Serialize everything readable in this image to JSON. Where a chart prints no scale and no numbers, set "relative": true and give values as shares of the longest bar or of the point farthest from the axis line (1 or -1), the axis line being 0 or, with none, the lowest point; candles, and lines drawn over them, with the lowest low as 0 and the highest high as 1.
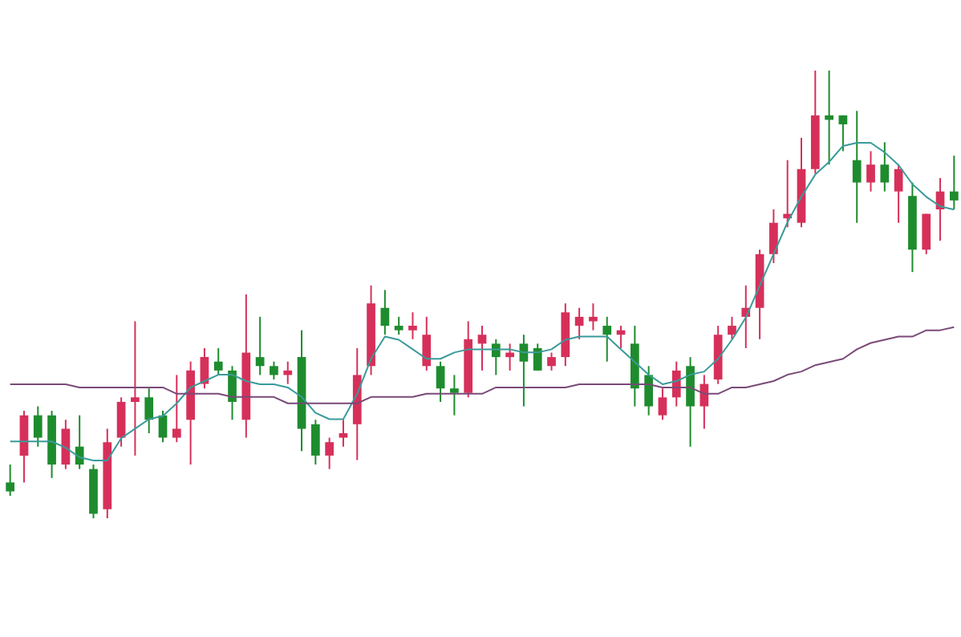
{
  "chart_data": [
    {
      "type": "candlestick",
      "relative": true,
      "categories": [
        null,
        null,
        null,
        null,
        null,
        null,
        null,
        null,
        null,
        null,
        null,
        null,
        null,
        null,
        null,
        null,
        null,
        null,
        null,
        null,
        null,
        null,
        null,
        null,
        null,
        null,
        null,
        null,
        null,
        null,
        null,
        null,
        null,
        null,
        null,
        null,
        null,
        null,
        null,
        null,
        null,
        null,
        null,
        null,
        null,
        null,
        null,
        null,
        null,
        null,
        null,
        null,
        null,
        null,
        null,
        null,
        null,
        null,
        null,
        null,
        null,
        null,
        null,
        null,
        null,
        null,
        null,
        null,
        null
      ],
      "ohlc": [
        [
          0.08,
          0.12,
          0.05,
          0.06
        ],
        [
          0.14,
          0.24,
          0.08,
          0.23
        ],
        [
          0.23,
          0.25,
          0.16,
          0.18
        ],
        [
          0.23,
          0.24,
          0.09,
          0.12
        ],
        [
          0.12,
          0.22,
          0.11,
          0.2
        ],
        [
          0.16,
          0.23,
          0.11,
          0.12
        ],
        [
          0.11,
          0.12,
          0.0,
          0.01
        ],
        [
          0.02,
          0.2,
          0,
          0.17
        ],
        [
          0.18,
          0.27,
          0.16,
          0.26
        ],
        [
          0.26,
          0.44,
          0.14,
          0.27
        ],
        [
          0.27,
          0.29,
          0.19,
          0.22
        ],
        [
          0.23,
          0.24,
          0.17,
          0.18
        ],
        [
          0.18,
          0.32,
          0.17,
          0.2
        ],
        [
          0.22,
          0.35,
          0.12,
          0.33
        ],
        [
          0.3,
          0.38,
          0.29,
          0.36
        ],
        [
          0.35,
          0.38,
          0.32,
          0.33
        ],
        [
          0.33,
          0.34,
          0.22,
          0.26
        ],
        [
          0.22,
          0.5,
          0.18,
          0.37
        ],
        [
          0.36,
          0.45,
          0.32,
          0.34
        ],
        [
          0.34,
          0.35,
          0.31,
          0.32
        ],
        [
          0.32,
          0.35,
          0.3,
          0.33
        ],
        [
          0.36,
          0.42,
          0.15,
          0.2
        ],
        [
          0.21,
          0.22,
          0.12,
          0.14
        ],
        [
          0.14,
          0.18,
          0.11,
          0.17
        ],
        [
          0.18,
          0.22,
          0.16,
          0.19
        ],
        [
          0.21,
          0.38,
          0.13,
          0.32
        ],
        [
          0.34,
          0.52,
          0.32,
          0.48
        ],
        [
          0.47,
          0.51,
          0.41,
          0.43
        ],
        [
          0.43,
          0.45,
          0.41,
          0.42
        ],
        [
          0.42,
          0.46,
          0.4,
          0.43
        ],
        [
          0.34,
          0.45,
          0.33,
          0.41
        ],
        [
          0.34,
          0.35,
          0.26,
          0.29
        ],
        [
          0.29,
          0.32,
          0.23,
          0.28
        ],
        [
          0.28,
          0.44,
          0.27,
          0.4
        ],
        [
          0.39,
          0.43,
          0.33,
          0.41
        ],
        [
          0.39,
          0.4,
          0.32,
          0.36
        ],
        [
          0.36,
          0.39,
          0.33,
          0.37
        ],
        [
          0.39,
          0.41,
          0.25,
          0.35
        ],
        [
          0.38,
          0.39,
          0.33,
          0.33
        ],
        [
          0.34,
          0.37,
          0.33,
          0.36
        ],
        [
          0.36,
          0.48,
          0.34,
          0.46
        ],
        [
          0.43,
          0.47,
          0.4,
          0.45
        ],
        [
          0.44,
          0.48,
          0.42,
          0.45
        ],
        [
          0.43,
          0.45,
          0.35,
          0.41
        ],
        [
          0.41,
          0.43,
          0.38,
          0.42
        ],
        [
          0.39,
          0.43,
          0.25,
          0.29
        ],
        [
          0.32,
          0.34,
          0.23,
          0.25
        ],
        [
          0.23,
          0.29,
          0.22,
          0.27
        ],
        [
          0.27,
          0.35,
          0.25,
          0.33
        ],
        [
          0.34,
          0.36,
          0.16,
          0.25
        ],
        [
          0.25,
          0.32,
          0.2,
          0.3
        ],
        [
          0.31,
          0.43,
          0.3,
          0.41
        ],
        [
          0.41,
          0.45,
          0.4,
          0.43
        ],
        [
          0.45,
          0.52,
          0.38,
          0.47
        ],
        [
          0.47,
          0.6,
          0.4,
          0.59
        ],
        [
          0.59,
          0.69,
          0.57,
          0.66
        ],
        [
          0.67,
          0.8,
          0.65,
          0.68
        ],
        [
          0.66,
          0.85,
          0.65,
          0.78
        ],
        [
          0.78,
          1,
          0.77,
          0.9
        ],
        [
          0.9,
          1,
          0.79,
          0.89
        ],
        [
          0.9,
          0.9,
          0.82,
          0.88
        ],
        [
          0.8,
          0.91,
          0.66,
          0.75
        ],
        [
          0.75,
          0.82,
          0.73,
          0.79
        ],
        [
          0.79,
          0.84,
          0.73,
          0.75
        ],
        [
          0.73,
          0.79,
          0.66,
          0.78
        ],
        [
          0.72,
          0.75,
          0.55,
          0.6
        ],
        [
          0.6,
          0.68,
          0.59,
          0.68
        ],
        [
          0.69,
          0.76,
          0.62,
          0.73
        ],
        [
          0.73,
          0.81,
          0.69,
          0.71
        ]
      ],
      "colors": [
        "#1e8c2e",
        "#d6305a",
        "#1e8c2e",
        "#1e8c2e",
        "#d6305a",
        "#1e8c2e",
        "#1e8c2e",
        "#d6305a",
        "#d6305a",
        "#d6305a",
        "#1e8c2e",
        "#1e8c2e",
        "#d6305a",
        "#d6305a",
        "#d6305a",
        "#1e8c2e",
        "#1e8c2e",
        "#d6305a",
        "#1e8c2e",
        "#1e8c2e",
        "#d6305a",
        "#1e8c2e",
        "#1e8c2e",
        "#d6305a",
        "#d6305a",
        "#d6305a",
        "#d6305a",
        "#1e8c2e",
        "#1e8c2e",
        "#d6305a",
        "#d6305a",
        "#1e8c2e",
        "#1e8c2e",
        "#d6305a",
        "#d6305a",
        "#1e8c2e",
        "#d6305a",
        "#1e8c2e",
        "#1e8c2e",
        "#d6305a",
        "#d6305a",
        "#d6305a",
        "#d6305a",
        "#1e8c2e",
        "#d6305a",
        "#1e8c2e",
        "#1e8c2e",
        "#d6305a",
        "#d6305a",
        "#1e8c2e",
        "#d6305a",
        "#d6305a",
        "#d6305a",
        "#d6305a",
        "#d6305a",
        "#d6305a",
        "#d6305a",
        "#d6305a",
        "#d6305a",
        "#1e8c2e",
        "#1e8c2e",
        "#1e8c2e",
        "#d6305a",
        "#1e8c2e",
        "#d6305a",
        "#1e8c2e",
        "#d6305a",
        "#d6305a",
        "#1e8c2e"
      ]
    },
    {
      "type": "line",
      "relative": true,
      "categories": [
        null,
        null,
        null,
        null,
        null,
        null,
        null,
        null,
        null,
        null,
        null,
        null,
        null,
        null,
        null,
        null,
        null,
        null,
        null,
        null,
        null,
        null,
        null,
        null,
        null,
        null,
        null,
        null,
        null,
        null,
        null,
        null,
        null,
        null,
        null,
        null,
        null,
        null,
        null,
        null,
        null,
        null,
        null,
        null,
        null,
        null,
        null,
        null,
        null,
        null,
        null,
        null,
        null,
        null,
        null,
        null,
        null,
        null,
        null,
        null,
        null,
        null,
        null,
        null,
        null,
        null,
        null,
        null,
        null
      ],
      "series": [
        {
          "color": "#3a9a9a",
          "values": [
            0.06,
            0.06,
            0.06,
            0.06,
            0.04,
            0.01,
            0,
            0,
            0.07,
            0.1,
            0.13,
            0.14,
            0.18,
            0.23,
            0.25,
            0.27,
            0.27,
            0.25,
            0.24,
            0.24,
            0.23,
            0.2,
            0.15,
            0.13,
            0.13,
            0.21,
            0.32,
            0.39,
            0.38,
            0.35,
            0.32,
            0.32,
            0.34,
            0.35,
            0.35,
            0.35,
            0.35,
            0.34,
            0.34,
            0.35,
            0.38,
            0.39,
            0.39,
            0.39,
            0.35,
            0.31,
            0.27,
            0.24,
            0.25,
            0.27,
            0.28,
            0.32,
            0.38,
            0.45,
            0.55,
            0.65,
            0.75,
            0.83,
            0.9,
            0.94,
            0.99,
            1,
            1,
            0.97,
            0.93,
            0.87,
            0.83,
            0.8,
            0.79
          ]
        },
        {
          "color": "#7a4a78",
          "values": [
            0.24,
            0.24,
            0.24,
            0.24,
            0.24,
            0.23,
            0.23,
            0.23,
            0.23,
            0.23,
            0.23,
            0.23,
            0.21,
            0.21,
            0.21,
            0.21,
            0.2,
            0.2,
            0.2,
            0.2,
            0.18,
            0.18,
            0.18,
            0.18,
            0.18,
            0.18,
            0.2,
            0.2,
            0.2,
            0.2,
            0.21,
            0.21,
            0.21,
            0.21,
            0.21,
            0.23,
            0.23,
            0.23,
            0.23,
            0.23,
            0.23,
            0.24,
            0.24,
            0.24,
            0.24,
            0.24,
            0.24,
            0.23,
            0.23,
            0.23,
            0.21,
            0.21,
            0.23,
            0.23,
            0.24,
            0.25,
            0.27,
            0.28,
            0.3,
            0.31,
            0.32,
            0.35,
            0.37,
            0.38,
            0.39,
            0.39,
            0.41,
            0.41,
            0.42
          ]
        }
      ]
    }
  ]
}
